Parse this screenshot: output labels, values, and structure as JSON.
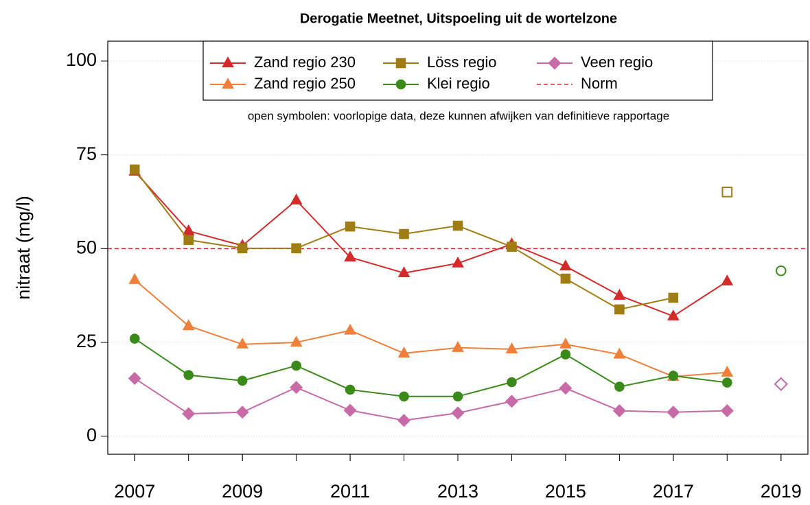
{
  "chart_data": {
    "type": "line",
    "title": "Derogatie Meetnet, Uitspoeling uit de wortelzone",
    "y_label": "nitraat (mg/l)",
    "note": "open symbolen: voorlopige data, deze kunnen afwijken van definitieve rapportage",
    "x": [
      2007,
      2008,
      2009,
      2010,
      2011,
      2012,
      2013,
      2014,
      2015,
      2016,
      2017,
      2018,
      2019
    ],
    "xlim": [
      2006.5,
      2019.5
    ],
    "xticks": [
      2007,
      2009,
      2011,
      2013,
      2015,
      2017,
      2019
    ],
    "ylim": [
      -4.8,
      105.3
    ],
    "yticks": [
      0,
      25,
      50,
      75,
      100
    ],
    "grid": true,
    "series": [
      {
        "name": "Zand regio 230",
        "color": "#d42a2a",
        "marker": "triangle",
        "values": [
          70.6,
          54.7,
          50.8,
          62.9,
          47.7,
          43.5,
          46.1,
          51.2,
          45.3,
          37.5,
          32.0,
          41.3,
          null
        ],
        "provisional_values": [
          null,
          null,
          null,
          null,
          null,
          null,
          null,
          null,
          null,
          null,
          null,
          null,
          null
        ]
      },
      {
        "name": "Zand regio 250",
        "color": "#f07f3c",
        "marker": "triangle",
        "values": [
          41.7,
          29.4,
          24.5,
          25.0,
          28.2,
          22.1,
          23.6,
          23.2,
          24.5,
          21.8,
          15.9,
          17.0,
          null
        ],
        "provisional_values": [
          null,
          null,
          null,
          null,
          null,
          null,
          null,
          null,
          null,
          null,
          null,
          null,
          null
        ]
      },
      {
        "name": "Löss regio",
        "color": "#a07d12",
        "marker": "square",
        "values": [
          71.1,
          52.3,
          50.1,
          50.1,
          55.9,
          53.9,
          56.1,
          50.5,
          42.0,
          33.8,
          36.9,
          null,
          null
        ],
        "provisional_values": [
          null,
          null,
          null,
          null,
          null,
          null,
          null,
          null,
          null,
          null,
          null,
          65.1,
          null
        ]
      },
      {
        "name": "Klei regio",
        "color": "#3a8a1a",
        "marker": "circle",
        "values": [
          26.0,
          16.3,
          14.8,
          18.8,
          12.4,
          10.6,
          10.6,
          14.4,
          21.8,
          13.2,
          16.1,
          14.3,
          null
        ],
        "provisional_values": [
          null,
          null,
          null,
          null,
          null,
          null,
          null,
          null,
          null,
          null,
          null,
          null,
          44.1
        ]
      },
      {
        "name": "Veen regio",
        "color": "#c86aa8",
        "marker": "diamond",
        "values": [
          15.4,
          6.0,
          6.4,
          13.0,
          6.9,
          4.2,
          6.2,
          9.3,
          12.8,
          6.8,
          6.4,
          6.8,
          null
        ],
        "provisional_values": [
          null,
          null,
          null,
          null,
          null,
          null,
          null,
          null,
          null,
          null,
          null,
          null,
          13.9
        ]
      }
    ],
    "norm": {
      "name": "Norm",
      "value": 50,
      "color": "#d42a2a"
    }
  }
}
